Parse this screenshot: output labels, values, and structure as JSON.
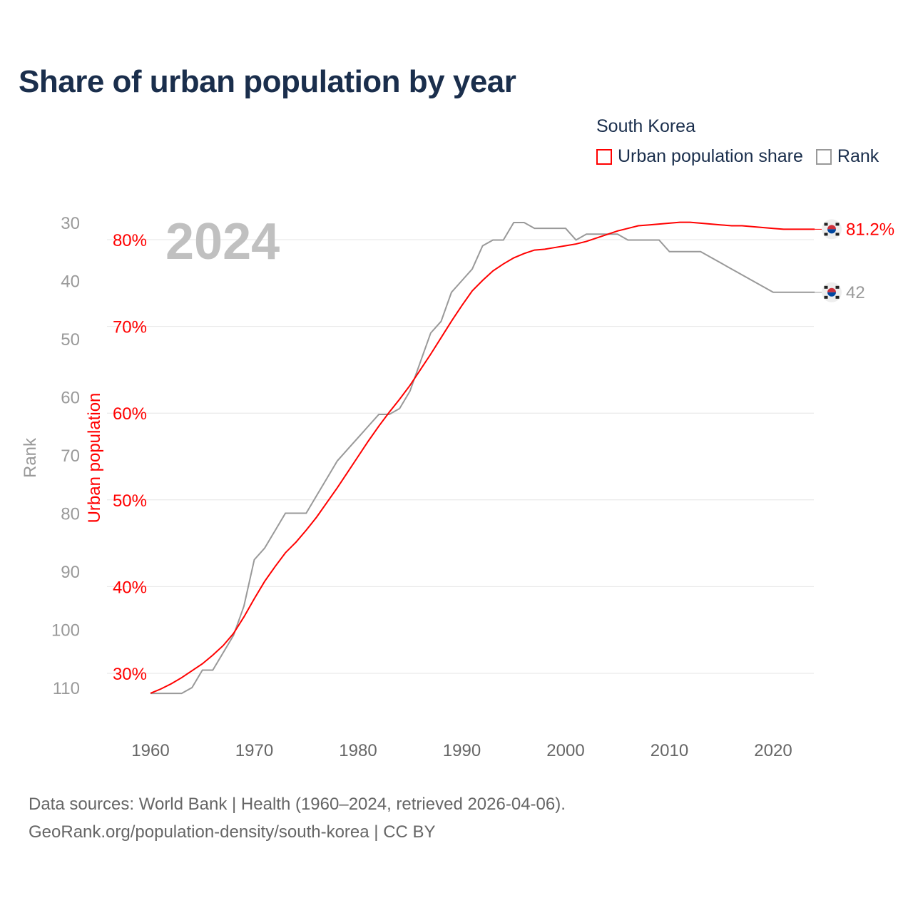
{
  "title": "Share of urban population by year",
  "legend": {
    "country": "South Korea",
    "items": [
      {
        "label": "Urban population share",
        "color": "#ff0000"
      },
      {
        "label": "Rank",
        "color": "#999999"
      }
    ]
  },
  "year_watermark": "2024",
  "source_lines": [
    "Data sources: World Bank | Health (1960–2024, retrieved 2026-04-06).",
    "GeoRank.org/population-density/south-korea | CC BY"
  ],
  "end_labels": {
    "urban": "81.2%",
    "rank": "42"
  },
  "chart_data": {
    "type": "line",
    "title": "Share of urban population by year",
    "xlabel": "",
    "ylabel": "Urban population",
    "y2label": "Rank",
    "xlim": [
      1960,
      2024
    ],
    "ylim": [
      26,
      83
    ],
    "y2lim": [
      27,
      114
    ],
    "x_ticks": [
      1960,
      1970,
      1980,
      1990,
      2000,
      2010,
      2020
    ],
    "y_ticks": [
      30,
      40,
      50,
      60,
      70,
      80
    ],
    "y_tick_labels": [
      "30%",
      "40%",
      "50%",
      "60%",
      "70%",
      "80%"
    ],
    "y2_ticks": [
      30,
      40,
      50,
      60,
      70,
      80,
      90,
      100,
      110
    ],
    "grid": true,
    "legend_position": "top-right",
    "x": [
      1960,
      1961,
      1962,
      1963,
      1964,
      1965,
      1966,
      1967,
      1968,
      1969,
      1970,
      1971,
      1972,
      1973,
      1974,
      1975,
      1976,
      1977,
      1978,
      1979,
      1980,
      1981,
      1982,
      1983,
      1984,
      1985,
      1986,
      1987,
      1988,
      1989,
      1990,
      1991,
      1992,
      1993,
      1994,
      1995,
      1996,
      1997,
      1998,
      1999,
      2000,
      2001,
      2002,
      2003,
      2004,
      2005,
      2006,
      2007,
      2008,
      2009,
      2010,
      2011,
      2012,
      2013,
      2014,
      2015,
      2016,
      2017,
      2018,
      2019,
      2020,
      2021,
      2022,
      2023,
      2024
    ],
    "series": [
      {
        "name": "Urban population share",
        "color": "#ff0000",
        "axis": "left",
        "values": [
          27.7,
          28.2,
          28.8,
          29.5,
          30.3,
          31.1,
          32.1,
          33.2,
          34.6,
          36.5,
          38.6,
          40.6,
          42.3,
          43.9,
          45.1,
          46.5,
          48.0,
          49.7,
          51.4,
          53.2,
          55.0,
          56.8,
          58.5,
          60.1,
          61.6,
          63.2,
          65.0,
          66.8,
          68.7,
          70.6,
          72.4,
          74.1,
          75.3,
          76.4,
          77.2,
          77.9,
          78.4,
          78.8,
          78.9,
          79.1,
          79.3,
          79.5,
          79.8,
          80.2,
          80.6,
          81.0,
          81.3,
          81.6,
          81.7,
          81.8,
          81.9,
          82.0,
          82.0,
          81.9,
          81.8,
          81.7,
          81.6,
          81.6,
          81.5,
          81.4,
          81.3,
          81.2,
          81.2,
          81.2,
          81.2
        ]
      },
      {
        "name": "Rank",
        "color": "#999999",
        "axis": "right-inverted",
        "values": [
          111,
          111,
          111,
          111,
          110,
          107,
          107,
          104,
          101,
          96,
          88,
          86,
          83,
          80,
          80,
          80,
          77,
          74,
          71,
          69,
          67,
          65,
          63,
          63,
          62,
          59,
          54,
          49,
          47,
          42,
          40,
          38,
          34,
          33,
          33,
          30,
          30,
          31,
          31,
          31,
          31,
          33,
          32,
          32,
          32,
          32,
          33,
          33,
          33,
          33,
          35,
          35,
          35,
          35,
          36,
          37,
          38,
          39,
          40,
          41,
          42,
          42,
          42,
          42,
          42
        ]
      }
    ]
  }
}
